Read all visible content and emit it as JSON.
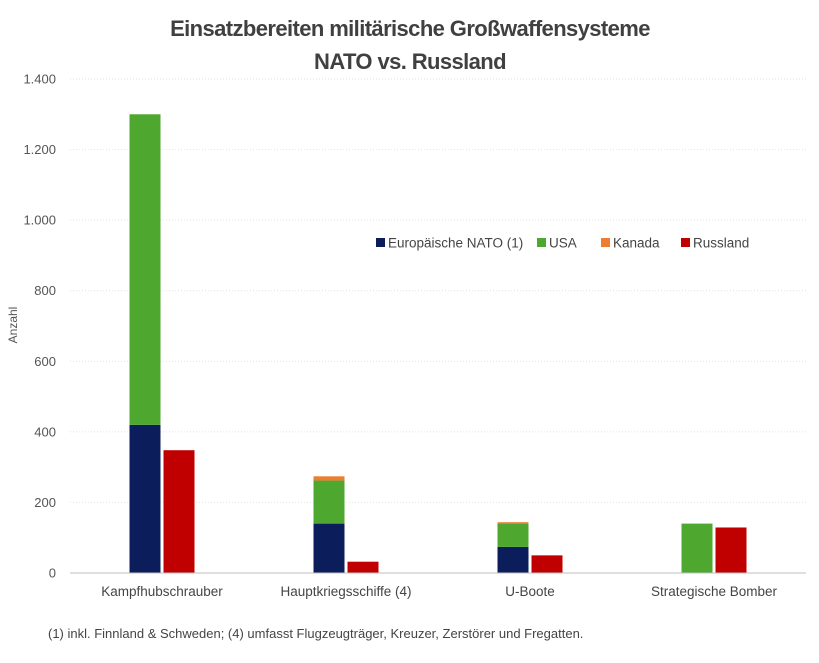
{
  "chart_data": {
    "type": "bar",
    "stacked_groups": true,
    "title": [
      "Einsatzbereiten militärische Großwaffensysteme",
      "NATO vs. Russland"
    ],
    "ylabel": "Anzahl",
    "ylim": [
      0,
      1400
    ],
    "yticks": [
      0,
      200,
      400,
      600,
      800,
      1000,
      1200,
      1400
    ],
    "ytick_labels": [
      "0",
      "200",
      "400",
      "600",
      "800",
      "1.000",
      "1.200",
      "1.400"
    ],
    "grid": true,
    "legend_position": "top-right",
    "categories": [
      "Kampfhubschrauber",
      "Hauptkriegsschiffe (4)",
      "U-Boote",
      "Strategische Bomber"
    ],
    "series": [
      {
        "name": "Europäische NATO (1)",
        "color": "#0b1e5b",
        "stack": "NATO",
        "values": [
          420,
          140,
          74,
          0
        ]
      },
      {
        "name": "USA",
        "color": "#4ea72e",
        "stack": "NATO",
        "values": [
          880,
          122,
          66,
          140
        ]
      },
      {
        "name": "Kanada",
        "color": "#ed7d31",
        "stack": "NATO",
        "values": [
          0,
          12,
          4,
          0
        ]
      },
      {
        "name": "Russland",
        "color": "#c00000",
        "stack": "Russland",
        "values": [
          348,
          32,
          50,
          129
        ]
      }
    ]
  },
  "footnote": "(1) inkl. Finnland & Schweden; (4) umfasst Flugzeugträger, Kreuzer, Zerstörer und Fregatten."
}
